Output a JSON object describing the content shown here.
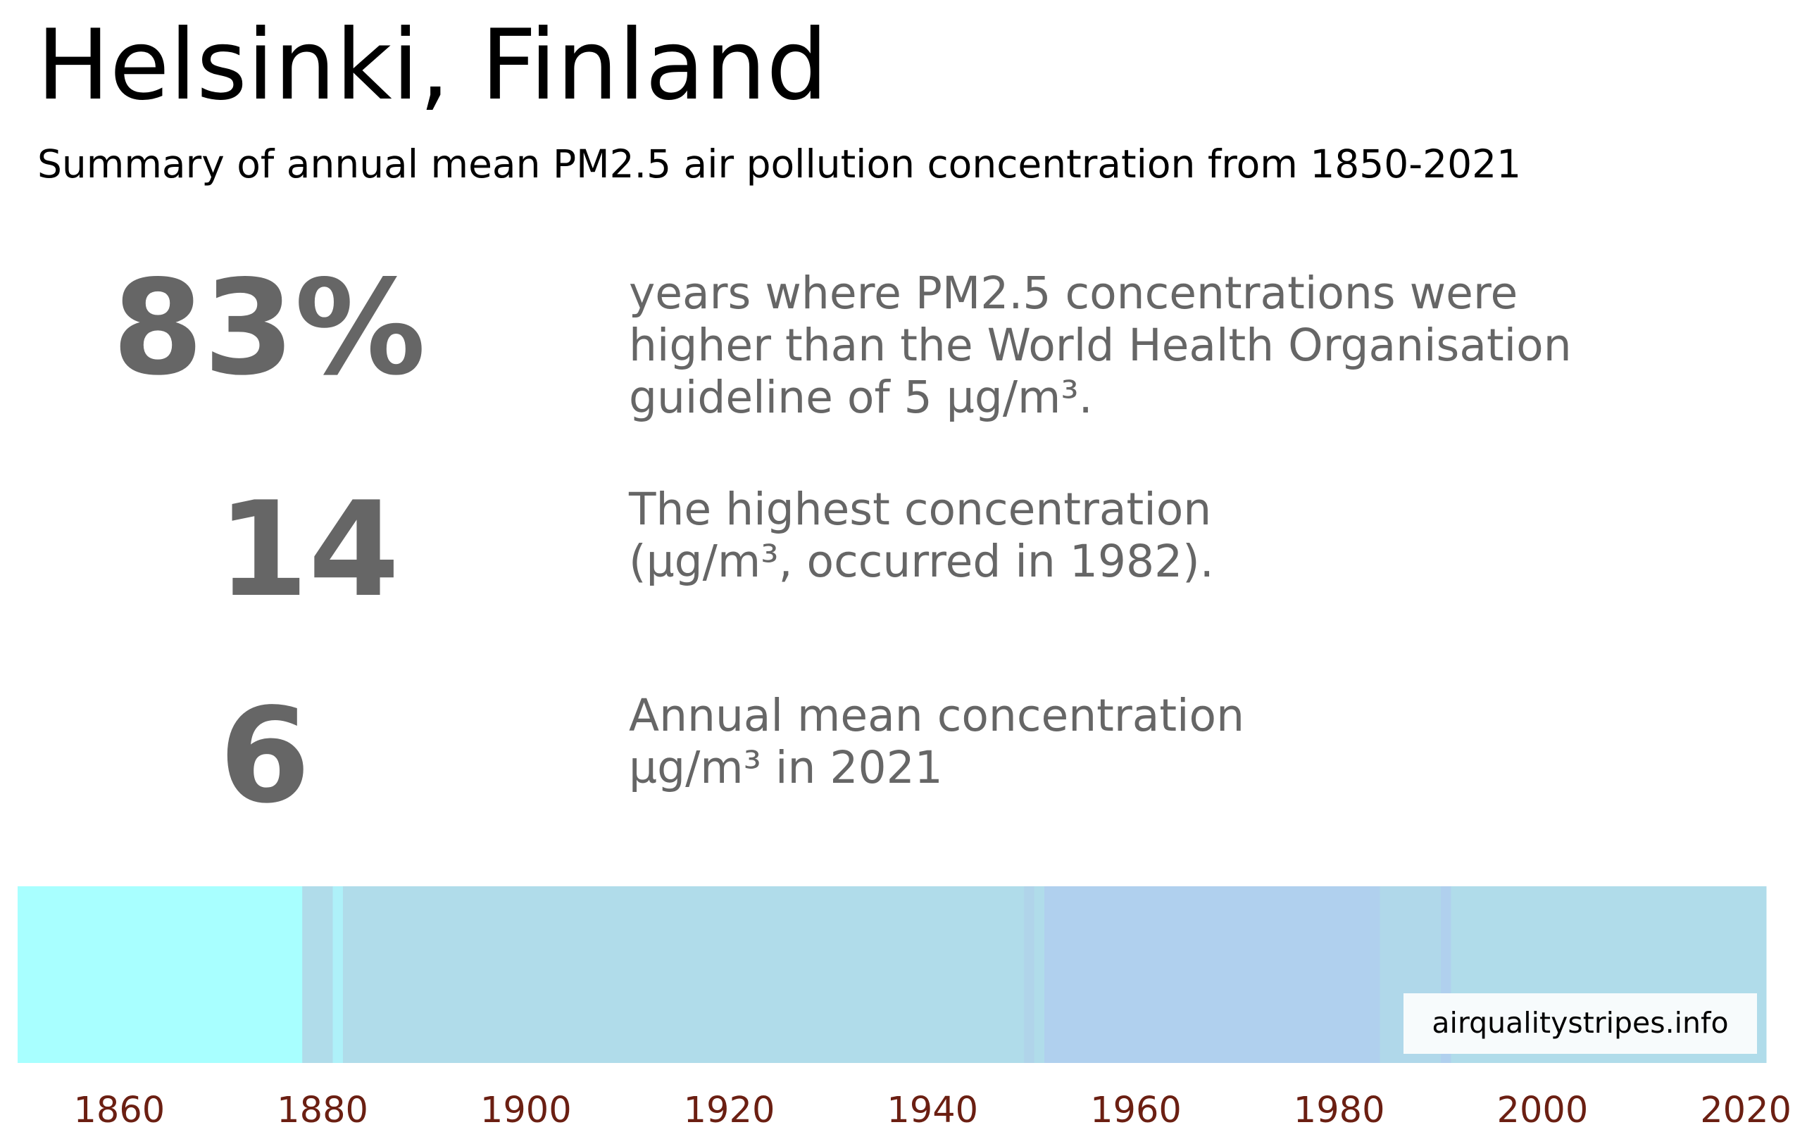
{
  "title": "Helsinki, Finland",
  "subtitle": "Summary of annual mean PM2.5 air pollution concentration from 1850-2021",
  "stats": [
    {
      "value": "83%",
      "text": "years where PM2.5 concentrations were\nhigher than the World Health Organisation\nguideline of 5 µg/m³."
    },
    {
      "value": "14",
      "text": "The highest concentration\n(µg/m³, occurred in 1982)."
    },
    {
      "value": "6",
      "text": "Annual mean concentration\nµg/m³ in 2021"
    }
  ],
  "watermark": "airqualitystripes.info",
  "chart_data": {
    "type": "heatmap",
    "xlim": [
      1850,
      2022
    ],
    "x_ticks": [
      "1860",
      "1880",
      "1900",
      "1920",
      "1940",
      "1960",
      "1980",
      "2000",
      "2020"
    ],
    "tick_color": "#6b1f12",
    "stripes": [
      {
        "start": 1850,
        "end": 1878,
        "color": "#a8ffff"
      },
      {
        "start": 1878,
        "end": 1881,
        "color": "#b0dcea"
      },
      {
        "start": 1881,
        "end": 1882,
        "color": "#aef1f9"
      },
      {
        "start": 1882,
        "end": 1949,
        "color": "#b0dcea"
      },
      {
        "start": 1949,
        "end": 1950,
        "color": "#b0d4ea"
      },
      {
        "start": 1950,
        "end": 1951,
        "color": "#b0dcea"
      },
      {
        "start": 1951,
        "end": 1984,
        "color": "#b0d0ee"
      },
      {
        "start": 1984,
        "end": 1990,
        "color": "#b0d8ea"
      },
      {
        "start": 1990,
        "end": 1991,
        "color": "#b0d0ee"
      },
      {
        "start": 1991,
        "end": 2022,
        "color": "#b0dcea"
      }
    ]
  }
}
